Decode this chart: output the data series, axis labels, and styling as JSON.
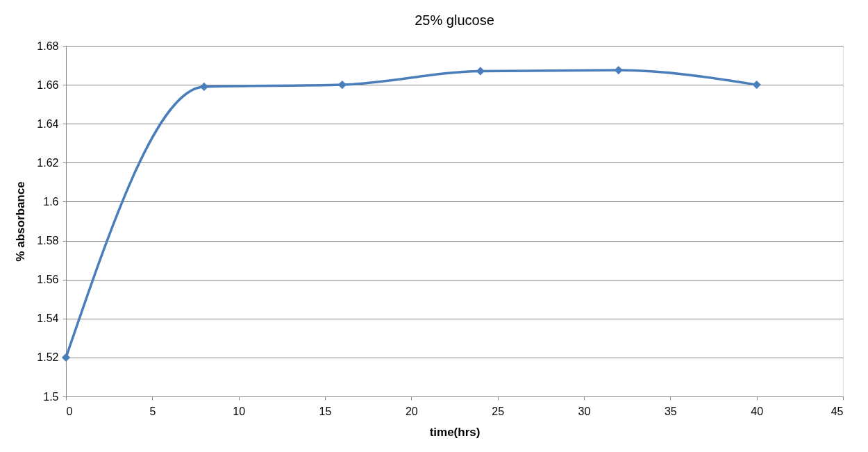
{
  "chart_data": {
    "type": "line",
    "title": "25% glucose",
    "xlabel": "time(hrs)",
    "ylabel": "% absorbance",
    "x": [
      0,
      8,
      16,
      24,
      32,
      40
    ],
    "series": [
      {
        "color": "#4a7ebb",
        "values": [
          1.52,
          1.659,
          1.66,
          1.667,
          1.6675,
          1.66
        ]
      }
    ],
    "xlim": [
      0,
      45
    ],
    "xticks": [
      0,
      5,
      10,
      15,
      20,
      25,
      30,
      35,
      40,
      45
    ],
    "ylim": [
      1.5,
      1.68
    ],
    "yticks": [
      1.5,
      1.52,
      1.54,
      1.56,
      1.58,
      {
        "value": 1.6,
        "label": "1.6"
      },
      1.62,
      1.64,
      1.66,
      1.68
    ],
    "grid": "y",
    "legend": false,
    "marker": "diamond",
    "line_style": "solid"
  }
}
